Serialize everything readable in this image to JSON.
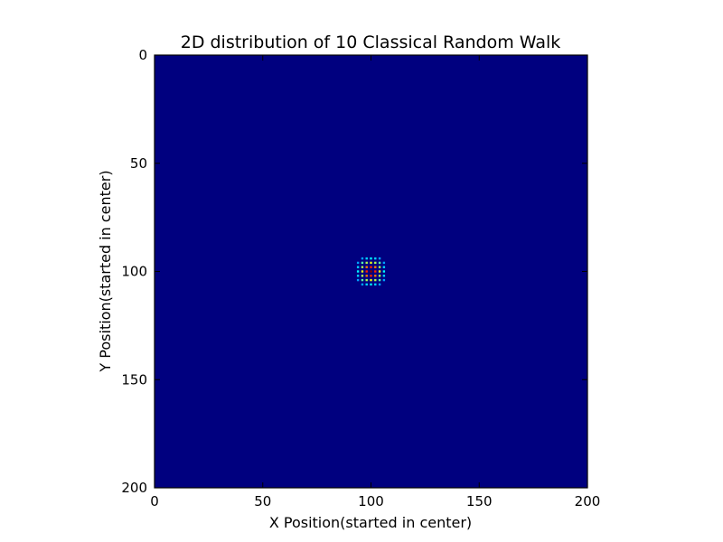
{
  "chart_data": {
    "type": "heatmap",
    "title": "2D distribution of 10 Classical Random Walk",
    "xlabel": "X Position(started in center)",
    "ylabel": "Y Position(started in center)",
    "xlim": [
      0,
      200
    ],
    "ylim": [
      200,
      0
    ],
    "x_ticks": [
      0,
      50,
      100,
      150,
      200
    ],
    "y_ticks": [
      0,
      50,
      100,
      150,
      200
    ],
    "colormap": "jet",
    "background_color": "#00007f",
    "grid": false,
    "legend": "none",
    "center": [
      100,
      100
    ],
    "peak_cells": [
      {
        "x": 100,
        "y": 100,
        "v": 1.0
      },
      {
        "x": 98,
        "y": 100,
        "v": 0.82
      },
      {
        "x": 102,
        "y": 100,
        "v": 0.82
      },
      {
        "x": 100,
        "y": 98,
        "v": 0.82
      },
      {
        "x": 100,
        "y": 102,
        "v": 0.82
      },
      {
        "x": 98,
        "y": 98,
        "v": 0.72
      },
      {
        "x": 102,
        "y": 98,
        "v": 0.72
      },
      {
        "x": 98,
        "y": 102,
        "v": 0.72
      },
      {
        "x": 102,
        "y": 102,
        "v": 0.72
      },
      {
        "x": 96,
        "y": 100,
        "v": 0.55
      },
      {
        "x": 104,
        "y": 100,
        "v": 0.55
      },
      {
        "x": 100,
        "y": 96,
        "v": 0.55
      },
      {
        "x": 100,
        "y": 104,
        "v": 0.55
      },
      {
        "x": 96,
        "y": 98,
        "v": 0.48
      },
      {
        "x": 104,
        "y": 98,
        "v": 0.48
      },
      {
        "x": 96,
        "y": 102,
        "v": 0.48
      },
      {
        "x": 104,
        "y": 102,
        "v": 0.48
      },
      {
        "x": 98,
        "y": 96,
        "v": 0.48
      },
      {
        "x": 102,
        "y": 96,
        "v": 0.48
      },
      {
        "x": 98,
        "y": 104,
        "v": 0.48
      },
      {
        "x": 102,
        "y": 104,
        "v": 0.48
      },
      {
        "x": 96,
        "y": 96,
        "v": 0.38
      },
      {
        "x": 104,
        "y": 96,
        "v": 0.38
      },
      {
        "x": 96,
        "y": 104,
        "v": 0.38
      },
      {
        "x": 104,
        "y": 104,
        "v": 0.38
      },
      {
        "x": 94,
        "y": 100,
        "v": 0.28
      },
      {
        "x": 106,
        "y": 100,
        "v": 0.28
      },
      {
        "x": 100,
        "y": 94,
        "v": 0.28
      },
      {
        "x": 100,
        "y": 106,
        "v": 0.28
      },
      {
        "x": 94,
        "y": 98,
        "v": 0.24
      },
      {
        "x": 106,
        "y": 98,
        "v": 0.24
      },
      {
        "x": 94,
        "y": 102,
        "v": 0.24
      },
      {
        "x": 106,
        "y": 102,
        "v": 0.24
      },
      {
        "x": 98,
        "y": 94,
        "v": 0.24
      },
      {
        "x": 102,
        "y": 94,
        "v": 0.24
      },
      {
        "x": 98,
        "y": 106,
        "v": 0.24
      },
      {
        "x": 102,
        "y": 106,
        "v": 0.24
      },
      {
        "x": 94,
        "y": 96,
        "v": 0.18
      },
      {
        "x": 106,
        "y": 96,
        "v": 0.18
      },
      {
        "x": 94,
        "y": 104,
        "v": 0.18
      },
      {
        "x": 106,
        "y": 104,
        "v": 0.18
      },
      {
        "x": 96,
        "y": 94,
        "v": 0.18
      },
      {
        "x": 104,
        "y": 94,
        "v": 0.18
      },
      {
        "x": 96,
        "y": 106,
        "v": 0.18
      },
      {
        "x": 104,
        "y": 106,
        "v": 0.18
      }
    ]
  }
}
